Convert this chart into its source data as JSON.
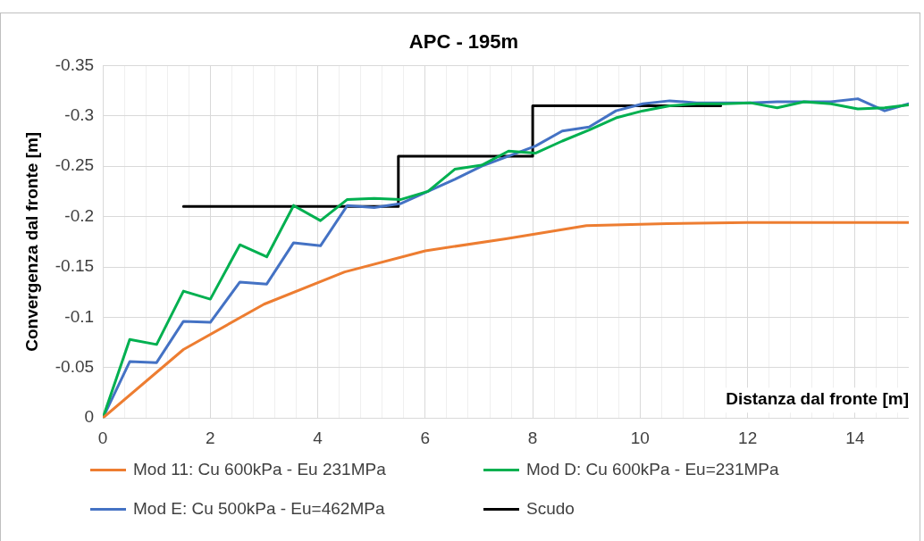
{
  "chart_data": {
    "type": "line",
    "title": "APC - 195m",
    "xlabel": "Distanza dal fronte [m]",
    "ylabel": "Convergenza dal fronte [m]",
    "xlim": [
      0,
      15
    ],
    "xticks": [
      0,
      {
        "value": 0.4,
        "label": null
      },
      {
        "value": 0.8,
        "label": null
      },
      {
        "value": 1.2,
        "label": null
      },
      {
        "value": 1.6,
        "label": null
      },
      2,
      {
        "value": 2.4,
        "label": null
      },
      {
        "value": 2.8,
        "label": null
      },
      {
        "value": 3.2,
        "label": null
      },
      {
        "value": 3.6,
        "label": null
      },
      4,
      {
        "value": 4.4,
        "label": null
      },
      {
        "value": 4.8,
        "label": null
      },
      {
        "value": 5.2,
        "label": null
      },
      {
        "value": 5.6,
        "label": null
      },
      6,
      {
        "value": 6.4,
        "label": null
      },
      {
        "value": 6.8,
        "label": null
      },
      {
        "value": 7.2,
        "label": null
      },
      {
        "value": 7.6,
        "label": null
      },
      8,
      {
        "value": 8.4,
        "label": null
      },
      {
        "value": 8.8,
        "label": null
      },
      {
        "value": 9.2,
        "label": null
      },
      {
        "value": 9.6,
        "label": null
      },
      10,
      {
        "value": 10.4,
        "label": null
      },
      {
        "value": 10.8,
        "label": null
      },
      {
        "value": 11.2,
        "label": null
      },
      {
        "value": 11.6,
        "label": null
      },
      12,
      {
        "value": 12.4,
        "label": null
      },
      {
        "value": 12.8,
        "label": null
      },
      {
        "value": 13.2,
        "label": null
      },
      {
        "value": 13.6,
        "label": null
      },
      14,
      {
        "value": 14.4,
        "label": null
      },
      {
        "value": 14.8,
        "label": null
      }
    ],
    "ylim": [
      0,
      -0.35
    ],
    "yticks": [
      0,
      -0.05,
      -0.1,
      -0.15,
      -0.2,
      -0.25,
      -0.3,
      -0.35
    ],
    "grid": true,
    "legend": "bottom",
    "marker": "none",
    "line_style": "solid",
    "series": [
      {
        "name": "Mod 11: Cu 600kPa - Eu 231MPa",
        "color": "#ed7d31",
        "x": [
          0,
          1.5,
          3,
          4.5,
          6,
          7.5,
          9,
          10.5,
          12,
          15
        ],
        "values": [
          0,
          -0.068,
          -0.113,
          -0.145,
          -0.166,
          -0.178,
          -0.191,
          -0.193,
          -0.194,
          -0.194
        ]
      },
      {
        "name": "Mod D: Cu 600kPa - Eu=231MPa",
        "color": "#00b050",
        "x": [
          0,
          0.5,
          1,
          1.5,
          2,
          2.55,
          3.05,
          3.55,
          4.05,
          4.55,
          5.05,
          5.55,
          6.05,
          6.55,
          7.05,
          7.55,
          8.05,
          8.55,
          9.05,
          9.55,
          10.05,
          10.55,
          11.05,
          11.55,
          12.05,
          12.55,
          13.05,
          13.55,
          14.05,
          14.55,
          15
        ],
        "values": [
          0,
          -0.078,
          -0.073,
          -0.126,
          -0.118,
          -0.172,
          -0.16,
          -0.211,
          -0.196,
          -0.217,
          -0.218,
          -0.217,
          -0.225,
          -0.247,
          -0.251,
          -0.265,
          -0.263,
          -0.275,
          -0.286,
          -0.298,
          -0.305,
          -0.31,
          -0.312,
          -0.312,
          -0.313,
          -0.308,
          -0.314,
          -0.312,
          -0.307,
          -0.308,
          -0.311
        ]
      },
      {
        "name": "Mod E: Cu 500kPa - Eu=462MPa",
        "color": "#4472c4",
        "x": [
          0,
          0.5,
          1,
          1.5,
          2,
          2.55,
          3.05,
          3.55,
          4.05,
          4.55,
          5.05,
          5.55,
          6.05,
          6.55,
          7.05,
          7.55,
          8.05,
          8.55,
          9.05,
          9.55,
          10.05,
          10.55,
          11.05,
          11.55,
          12.05,
          12.55,
          13.05,
          13.55,
          14.05,
          14.55,
          15
        ],
        "values": [
          0,
          -0.056,
          -0.055,
          -0.096,
          -0.095,
          -0.135,
          -0.133,
          -0.174,
          -0.171,
          -0.211,
          -0.209,
          -0.213,
          -0.225,
          -0.237,
          -0.25,
          -0.26,
          -0.27,
          -0.285,
          -0.289,
          -0.305,
          -0.312,
          -0.315,
          -0.313,
          -0.313,
          -0.313,
          -0.314,
          -0.314,
          -0.314,
          -0.317,
          -0.305,
          -0.312
        ]
      },
      {
        "name": "Scudo",
        "color": "#000000",
        "x": [
          1.5,
          5.5,
          5.5,
          8,
          8,
          11.5
        ],
        "values": [
          -0.21,
          -0.21,
          -0.26,
          -0.26,
          -0.31,
          -0.31
        ]
      }
    ]
  }
}
